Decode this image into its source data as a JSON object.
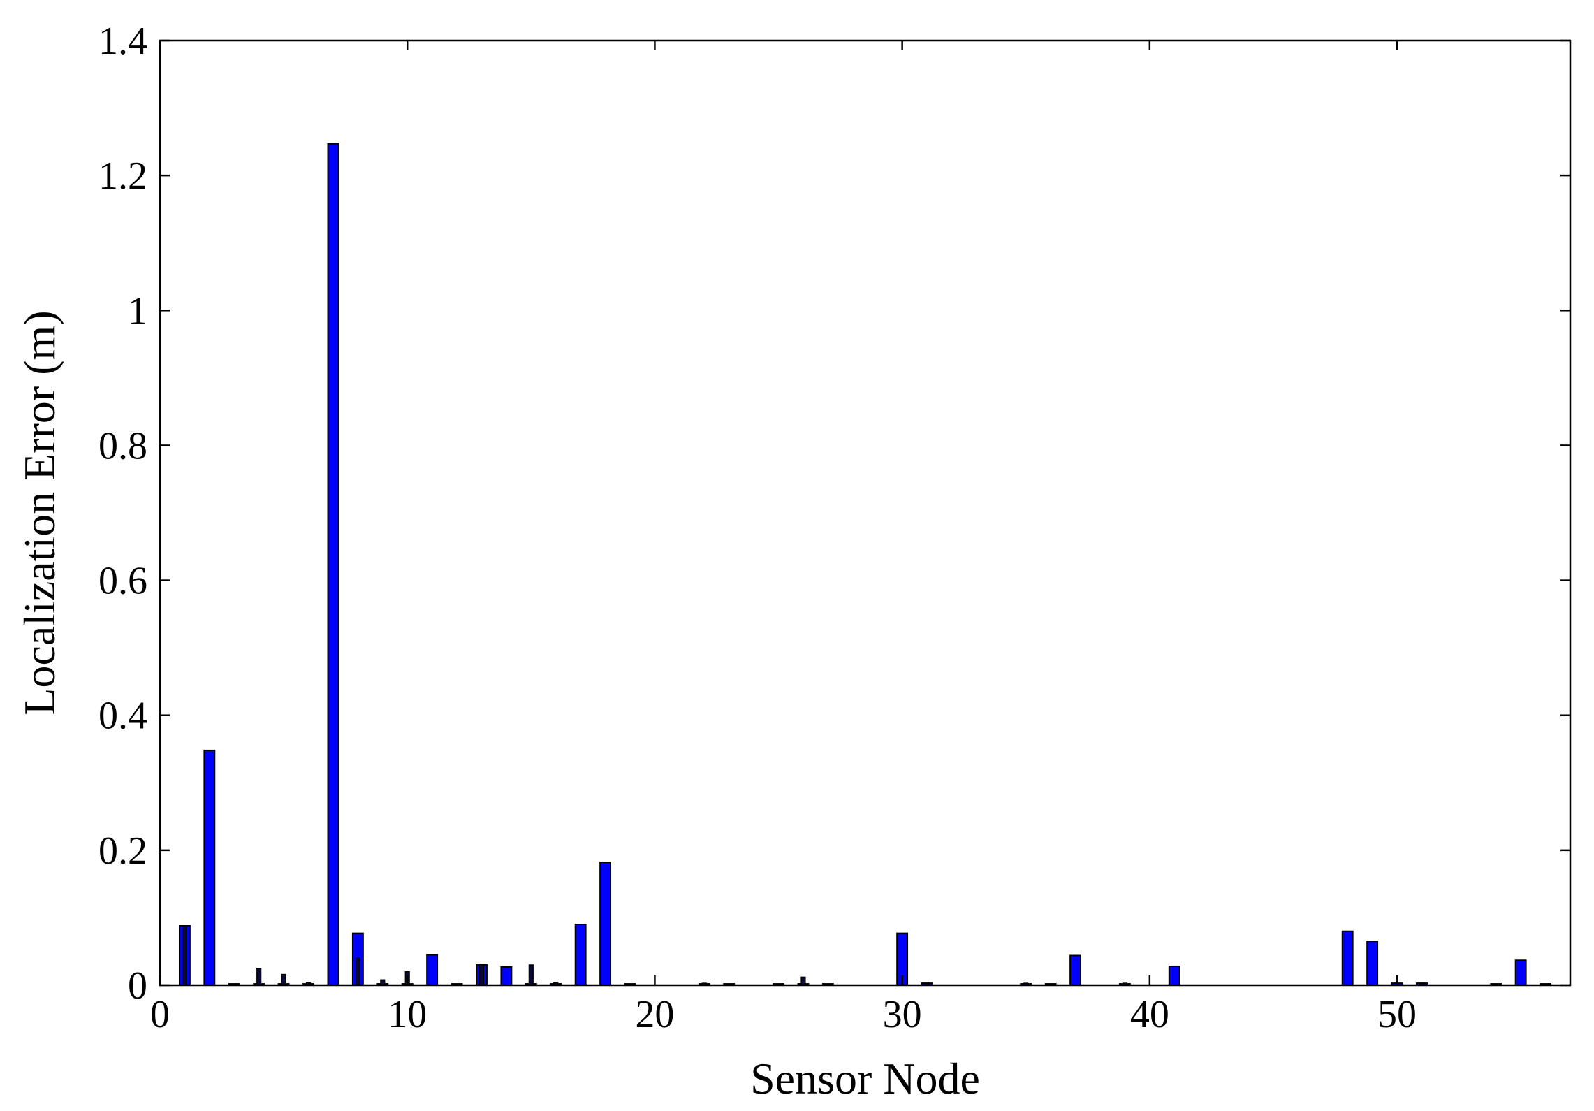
{
  "chart_data": {
    "type": "bar",
    "title": "",
    "xlabel": "Sensor Node",
    "ylabel": "Localization Error (m)",
    "xlim": [
      0,
      57
    ],
    "ylim": [
      0,
      1.4
    ],
    "xticks": [
      0,
      10,
      20,
      30,
      40,
      50
    ],
    "yticks": [
      0,
      0.2,
      0.4,
      0.6,
      0.8,
      1,
      1.2,
      1.4
    ],
    "xtick_labels": [
      "0",
      "10",
      "20",
      "30",
      "40",
      "50"
    ],
    "ytick_labels": [
      "0",
      "0.2",
      "0.4",
      "0.6",
      "0.8",
      "1",
      "1.2",
      "1.4"
    ],
    "grid": false,
    "colors": {
      "bar": "#0000ff",
      "edge": "#000000",
      "secondary": "#0a0a3a"
    },
    "series": [
      {
        "values": [
          0.088,
          0.348,
          0.002,
          0.002,
          0.002,
          0.002,
          1.247,
          0.077,
          0.002,
          0.002,
          0.045,
          0.002,
          0.03,
          0.027,
          0.002,
          0.002,
          0.09,
          0.182,
          0.002,
          0.0,
          0.0,
          0.002,
          0.002,
          0.0,
          0.002,
          0.002,
          0.002,
          0.0,
          0.0,
          0.077,
          0.003,
          0.0,
          0.0,
          0.0,
          0.002,
          0.002,
          0.044,
          0.0,
          0.002,
          0.0,
          0.028,
          0.0,
          0.0,
          0.0,
          0.0,
          0.0,
          0.0,
          0.08,
          0.065,
          0.003,
          0.003,
          0.0,
          0.0,
          0.002,
          0.037,
          0.002
        ]
      },
      {
        "values": [
          0.088,
          0.0,
          0.0,
          0.025,
          0.016,
          0.004,
          0.0,
          0.04,
          0.008,
          0.02,
          0.0,
          0.0,
          0.03,
          0.0,
          0.03,
          0.004,
          0.0,
          0.0,
          0.0,
          0.0,
          0.0,
          0.003,
          0.0,
          0.0,
          0.0,
          0.012,
          0.0,
          0.0,
          0.0,
          0.0,
          0.003,
          0.0,
          0.0,
          0.0,
          0.003,
          0.0,
          0.0,
          0.0,
          0.003,
          0.0,
          0.0,
          0.0,
          0.0,
          0.0,
          0.0,
          0.0,
          0.0,
          0.0,
          0.0,
          0.0,
          0.003,
          0.0,
          0.0,
          0.0,
          0.0,
          0.0
        ]
      }
    ]
  }
}
